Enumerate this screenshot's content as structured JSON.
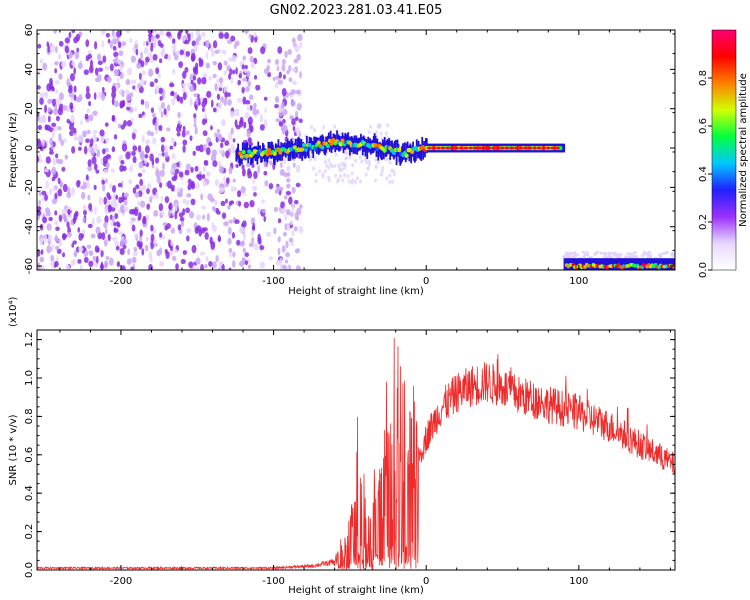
{
  "title": "GN02.2023.281.03.41.E05",
  "chart_data": [
    {
      "type": "heatmap",
      "xlabel": "Height of straight line (km)",
      "ylabel": "Frequency (Hz)",
      "xlim": [
        -255,
        163
      ],
      "ylim": [
        -62,
        60
      ],
      "x_ticks": [
        -200,
        -100,
        0,
        100
      ],
      "y_ticks": [
        -60,
        -40,
        -20,
        0,
        20,
        40,
        60
      ],
      "colorbar": {
        "label": "Normalized spectral amplitude",
        "range": [
          0,
          1
        ],
        "ticks": [
          "0.0",
          "0.2",
          "0.4",
          "0.6",
          "0.8"
        ],
        "colors": [
          "#ffffff",
          "#e8d8ff",
          "#9b30ff",
          "#2020ff",
          "#00c8ff",
          "#00ff40",
          "#d0ff00",
          "#ff8000",
          "#ff0000",
          "#ff0070"
        ]
      },
      "features": [
        {
          "name": "noise",
          "x_range": [
            -255,
            -82
          ],
          "y_range": [
            -62,
            60
          ],
          "amplitude": 0.2
        },
        {
          "name": "signal-track",
          "points": [
            [
              -125,
              -3
            ],
            [
              -100,
              -2
            ],
            [
              -80,
              0
            ],
            [
              -60,
              3
            ],
            [
              -45,
              2
            ],
            [
              -30,
              0
            ],
            [
              -15,
              -3
            ],
            [
              0,
              0
            ],
            [
              90,
              0
            ]
          ],
          "amplitude": 0.9
        },
        {
          "name": "lower-track",
          "x_range": [
            90,
            163
          ],
          "y": -60,
          "amplitude": 0.9
        }
      ],
      "grid": false
    },
    {
      "type": "line",
      "xlabel": "Height of straight line (km)",
      "ylabel": "SNR (10 * v/v)",
      "y_multiplier": "(x10⁴)",
      "xlim": [
        -255,
        163
      ],
      "ylim": [
        0,
        1.25
      ],
      "x_ticks": [
        -200,
        -100,
        0,
        100
      ],
      "y_ticks": [
        "0.0",
        "0.2",
        "0.4",
        "0.6",
        "0.8",
        "1.0",
        "1.2"
      ],
      "color": "#ee2a2a",
      "envelope": {
        "x": [
          -255,
          -100,
          -75,
          -60,
          -52,
          -45,
          -40,
          -35,
          -30,
          -25,
          -20,
          -15,
          -10,
          -5,
          0,
          10,
          20,
          30,
          40,
          50,
          60,
          80,
          100,
          120,
          140,
          163
        ],
        "y": [
          0.01,
          0.01,
          0.02,
          0.04,
          0.1,
          0.35,
          0.25,
          0.2,
          0.35,
          0.45,
          0.55,
          0.42,
          0.5,
          0.6,
          0.72,
          0.88,
          0.96,
          1.0,
          1.02,
          0.99,
          0.95,
          0.9,
          0.85,
          0.78,
          0.68,
          0.57
        ]
      },
      "grid": false
    }
  ]
}
